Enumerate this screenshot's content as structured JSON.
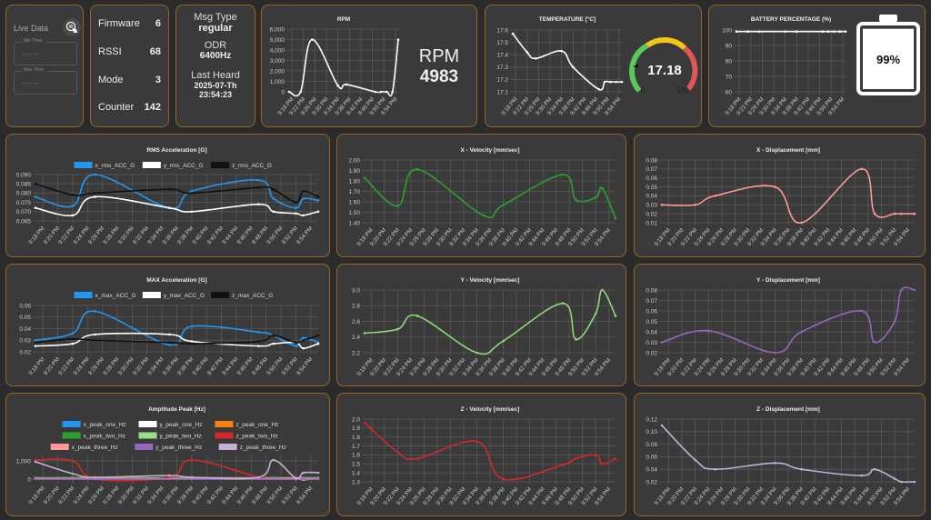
{
  "live": {
    "label": "Live Data",
    "min_time_label": "Min Time:",
    "min_time_value": "--:-- --",
    "max_time_label": "Max Time:",
    "max_time_value": "--:-- --"
  },
  "device": {
    "rows": [
      {
        "key": "Firmware",
        "value": "6"
      },
      {
        "key": "RSSI",
        "value": "68"
      },
      {
        "key": "Mode",
        "value": "3"
      },
      {
        "key": "Counter",
        "value": "142"
      }
    ]
  },
  "message": {
    "msg_type_label": "Msg Type",
    "msg_type": "regular",
    "odr_label": "ODR",
    "odr": "6400Hz",
    "last_heard_label": "Last Heard",
    "last_heard_date": "2025-07-Th",
    "last_heard_time": "23:54:23"
  },
  "rpm": {
    "label": "RPM",
    "value": "4983"
  },
  "gauge": {
    "value": "17.18",
    "min": "0",
    "max": "100",
    "colors": [
      "#5ac85a",
      "#f5c518",
      "#e05555"
    ]
  },
  "battery": {
    "value": "99%",
    "level": 99
  },
  "chart_data": [
    {
      "id": "rpm",
      "type": "line",
      "title": "RPM",
      "xlim": [
        "9:17 PM",
        "9:55 PM"
      ],
      "ylim": [
        0,
        6000
      ],
      "yticks": [
        "0",
        "1,000",
        "2,000",
        "3,000",
        "4,000",
        "5,000",
        "6,000"
      ],
      "xticks": [
        "9:18 PM",
        "9:22 PM",
        "9:26 PM",
        "9:30 PM",
        "9:34 PM",
        "9:38 PM",
        "9:42 PM",
        "9:46 PM",
        "9:50 PM",
        "9:54 PM"
      ],
      "x": [
        "9:17 PM",
        "9:21 PM",
        "9:25 PM",
        "9:34 PM",
        "9:37 PM",
        "9:47 PM",
        "9:49 PM",
        "9:51 PM",
        "9:53 PM",
        "9:55 PM"
      ],
      "series": [
        {
          "color": "#ffffff",
          "values": [
            0,
            0,
            5000,
            600,
            700,
            0,
            0,
            0,
            0,
            4983
          ]
        }
      ]
    },
    {
      "id": "temp",
      "type": "line",
      "title": "TEMPERATURE [°C]",
      "xlim": [
        "9:17 PM",
        "9:55 PM"
      ],
      "ylim": [
        17.1,
        17.6
      ],
      "yticks": [
        "17.1",
        "17.2",
        "17.3",
        "17.4",
        "17.5",
        "17.6"
      ],
      "xticks": [
        "9:18 PM",
        "9:22 PM",
        "9:26 PM",
        "9:30 PM",
        "9:34 PM",
        "9:38 PM",
        "9:42 PM",
        "9:46 PM",
        "9:50 PM",
        "9:54 PM"
      ],
      "x": [
        "9:17 PM",
        "9:22 PM",
        "9:25 PM",
        "9:34 PM",
        "9:38 PM",
        "9:47 PM",
        "9:49 PM",
        "9:51 PM",
        "9:53 PM",
        "9:55 PM"
      ],
      "series": [
        {
          "color": "#ffffff",
          "values": [
            17.57,
            17.42,
            17.37,
            17.43,
            17.3,
            17.12,
            17.18,
            17.18,
            17.18,
            17.18
          ]
        }
      ]
    },
    {
      "id": "battery",
      "type": "line",
      "title": "BATTERY PERCENTAGE (%)",
      "xlim": [
        "9:17 PM",
        "9:55 PM"
      ],
      "ylim": [
        60,
        100
      ],
      "yticks": [
        "60",
        "70",
        "80",
        "90",
        "100"
      ],
      "xticks": [
        "9:18 PM",
        "9:22 PM",
        "9:26 PM",
        "9:30 PM",
        "9:34 PM",
        "9:38 PM",
        "9:42 PM",
        "9:46 PM",
        "9:50 PM",
        "9:54 PM"
      ],
      "x": [
        "9:17 PM",
        "9:21 PM",
        "9:25 PM",
        "9:34 PM",
        "9:38 PM",
        "9:47 PM",
        "9:49 PM",
        "9:51 PM",
        "9:53 PM",
        "9:55 PM"
      ],
      "series": [
        {
          "color": "#ffffff",
          "values": [
            99,
            99,
            99,
            99,
            99,
            99,
            99,
            99,
            99,
            99
          ]
        }
      ]
    },
    {
      "id": "rms",
      "type": "line",
      "title": "RMS Acceleration [G]",
      "xlim": [
        "9:17 PM",
        "9:55 PM"
      ],
      "ylim": [
        0.065,
        0.09
      ],
      "yticks": [
        "0.065",
        "0.070",
        "0.075",
        "0.080",
        "0.085",
        "0.090"
      ],
      "xticks": [
        "9:18 PM",
        "9:20 PM",
        "9:22 PM",
        "9:24 PM",
        "9:26 PM",
        "9:28 PM",
        "9:30 PM",
        "9:32 PM",
        "9:34 PM",
        "9:36 PM",
        "9:38 PM",
        "9:40 PM",
        "9:42 PM",
        "9:44 PM",
        "9:46 PM",
        "9:48 PM",
        "9:50 PM",
        "9:52 PM",
        "9:54 PM"
      ],
      "x": [
        "9:17 PM",
        "9:22 PM",
        "9:25 PM",
        "9:35 PM",
        "9:38 PM",
        "9:47 PM",
        "9:49 PM",
        "9:52 PM",
        "9:53 PM",
        "9:55 PM"
      ],
      "series": [
        {
          "name": "x_rms_ACC_G",
          "color": "#2196f3",
          "values": [
            0.078,
            0.073,
            0.09,
            0.072,
            0.081,
            0.087,
            0.077,
            0.072,
            0.077,
            0.076
          ]
        },
        {
          "name": "y_rms_ACC_G",
          "color": "#ffffff",
          "values": [
            0.072,
            0.068,
            0.078,
            0.072,
            0.07,
            0.074,
            0.07,
            0.069,
            0.068,
            0.07
          ]
        },
        {
          "name": "z_rms_ACC_G",
          "color": "#111111",
          "values": [
            0.085,
            0.079,
            0.08,
            0.082,
            0.08,
            0.083,
            0.082,
            0.075,
            0.081,
            0.078
          ]
        }
      ]
    },
    {
      "id": "xvel",
      "type": "line",
      "title": "X - Velocity [mm/sec]",
      "xlim": [
        "9:17 PM",
        "9:55 PM"
      ],
      "ylim": [
        1.4,
        2.0
      ],
      "yticks": [
        "1.40",
        "1.50",
        "1.60",
        "1.70",
        "1.80",
        "1.90",
        "2.00"
      ],
      "xticks": [
        "9:18 PM",
        "9:20 PM",
        "9:22 PM",
        "9:24 PM",
        "9:26 PM",
        "9:28 PM",
        "9:30 PM",
        "9:32 PM",
        "9:34 PM",
        "9:36 PM",
        "9:38 PM",
        "9:40 PM",
        "9:42 PM",
        "9:44 PM",
        "9:46 PM",
        "9:48 PM",
        "9:50 PM",
        "9:52 PM",
        "9:54 PM"
      ],
      "x": [
        "9:17 PM",
        "9:22 PM",
        "9:25 PM",
        "9:35 PM",
        "9:38 PM",
        "9:47 PM",
        "9:49 PM",
        "9:52 PM",
        "9:53 PM",
        "9:55 PM"
      ],
      "series": [
        {
          "color": "#2ca02c",
          "values": [
            1.83,
            1.56,
            1.91,
            1.47,
            1.57,
            1.86,
            1.62,
            1.64,
            1.73,
            1.44
          ]
        }
      ]
    },
    {
      "id": "xdisp",
      "type": "line",
      "title": "X - Displacement [mm]",
      "xlim": [
        "9:17 PM",
        "9:55 PM"
      ],
      "ylim": [
        0.01,
        0.08
      ],
      "yticks": [
        "0.01",
        "0.02",
        "0.03",
        "0.04",
        "0.05",
        "0.06",
        "0.07",
        "0.08"
      ],
      "xticks": [
        "9:18 PM",
        "9:20 PM",
        "9:22 PM",
        "9:24 PM",
        "9:26 PM",
        "9:28 PM",
        "9:30 PM",
        "9:32 PM",
        "9:34 PM",
        "9:36 PM",
        "9:38 PM",
        "9:40 PM",
        "9:42 PM",
        "9:44 PM",
        "9:46 PM",
        "9:48 PM",
        "9:50 PM",
        "9:52 PM",
        "9:54 PM"
      ],
      "x": [
        "9:17 PM",
        "9:22 PM",
        "9:25 PM",
        "9:34 PM",
        "9:38 PM",
        "9:47 PM",
        "9:49 PM",
        "9:52 PM",
        "9:53 PM",
        "9:55 PM"
      ],
      "series": [
        {
          "color": "#ff9896",
          "values": [
            0.03,
            0.03,
            0.04,
            0.05,
            0.01,
            0.07,
            0.02,
            0.02,
            0.02,
            0.02
          ]
        }
      ]
    },
    {
      "id": "max",
      "type": "line",
      "title": "MAX Acceleration [G]",
      "xlim": [
        "9:17 PM",
        "9:55 PM"
      ],
      "ylim": [
        0.02,
        0.06
      ],
      "yticks": [
        "0.02",
        "0.03",
        "0.04",
        "0.05",
        "0.06"
      ],
      "xticks": [
        "9:18 PM",
        "9:20 PM",
        "9:22 PM",
        "9:24 PM",
        "9:26 PM",
        "9:28 PM",
        "9:30 PM",
        "9:32 PM",
        "9:34 PM",
        "9:36 PM",
        "9:38 PM",
        "9:40 PM",
        "9:42 PM",
        "9:44 PM",
        "9:46 PM",
        "9:48 PM",
        "9:50 PM",
        "9:52 PM",
        "9:54 PM"
      ],
      "x": [
        "9:17 PM",
        "9:22 PM",
        "9:25 PM",
        "9:35 PM",
        "9:38 PM",
        "9:47 PM",
        "9:49 PM",
        "9:52 PM",
        "9:53 PM",
        "9:55 PM"
      ],
      "series": [
        {
          "name": "x_max_ACC_G",
          "color": "#2196f3",
          "values": [
            0.03,
            0.036,
            0.055,
            0.026,
            0.042,
            0.037,
            0.034,
            0.025,
            0.032,
            0.028
          ]
        },
        {
          "name": "y_max_ACC_G",
          "color": "#ffffff",
          "values": [
            0.025,
            0.027,
            0.035,
            0.035,
            0.029,
            0.025,
            0.027,
            0.028,
            0.023,
            0.027
          ]
        },
        {
          "name": "z_max_ACC_G",
          "color": "#111111",
          "values": [
            0.028,
            0.031,
            0.03,
            0.028,
            0.027,
            0.029,
            0.034,
            0.028,
            0.03,
            0.034
          ]
        }
      ]
    },
    {
      "id": "yvel",
      "type": "line",
      "title": "Y - Velocity [mm/sec]",
      "xlim": [
        "9:17 PM",
        "9:55 PM"
      ],
      "ylim": [
        2.2,
        3.0
      ],
      "yticks": [
        "2.2",
        "2.4",
        "2.6",
        "2.8",
        "3.0"
      ],
      "xticks": [
        "9:18 PM",
        "9:20 PM",
        "9:22 PM",
        "9:24 PM",
        "9:26 PM",
        "9:28 PM",
        "9:30 PM",
        "9:32 PM",
        "9:34 PM",
        "9:36 PM",
        "9:38 PM",
        "9:40 PM",
        "9:42 PM",
        "9:44 PM",
        "9:46 PM",
        "9:48 PM",
        "9:50 PM",
        "9:52 PM",
        "9:54 PM"
      ],
      "x": [
        "9:17 PM",
        "9:22 PM",
        "9:25 PM",
        "9:34 PM",
        "9:38 PM",
        "9:47 PM",
        "9:49 PM",
        "9:52 PM",
        "9:53 PM",
        "9:55 PM"
      ],
      "series": [
        {
          "color": "#8fd97a",
          "values": [
            2.45,
            2.5,
            2.67,
            2.2,
            2.35,
            2.83,
            2.37,
            2.7,
            3.0,
            2.67
          ]
        }
      ]
    },
    {
      "id": "ydisp",
      "type": "line",
      "title": "Y - Displacement [mm]",
      "xlim": [
        "9:17 PM",
        "9:55 PM"
      ],
      "ylim": [
        0.02,
        0.08
      ],
      "yticks": [
        "0.02",
        "0.03",
        "0.04",
        "0.05",
        "0.06",
        "0.07",
        "0.08"
      ],
      "xticks": [
        "9:18 PM",
        "9:20 PM",
        "9:22 PM",
        "9:24 PM",
        "9:26 PM",
        "9:28 PM",
        "9:30 PM",
        "9:32 PM",
        "9:34 PM",
        "9:36 PM",
        "9:38 PM",
        "9:40 PM",
        "9:42 PM",
        "9:44 PM",
        "9:46 PM",
        "9:48 PM",
        "9:50 PM",
        "9:52 PM",
        "9:54 PM"
      ],
      "x": [
        "9:17 PM",
        "9:24 PM",
        "9:34 PM",
        "9:38 PM",
        "9:47 PM",
        "9:49 PM",
        "9:52 PM",
        "9:53 PM",
        "9:55 PM"
      ],
      "series": [
        {
          "color": "#9467bd",
          "values": [
            0.03,
            0.041,
            0.02,
            0.04,
            0.06,
            0.03,
            0.05,
            0.08,
            0.08
          ]
        }
      ]
    },
    {
      "id": "amp",
      "type": "line",
      "title": "Amplitude Peak [Hz]",
      "xlim": [
        "9:17 PM",
        "9:55 PM"
      ],
      "ylim": [
        -100,
        1300
      ],
      "yticks": [
        "0",
        "1,000"
      ],
      "xticks": [
        "9:18 PM",
        "9:20 PM",
        "9:22 PM",
        "9:24 PM",
        "9:26 PM",
        "9:28 PM",
        "9:30 PM",
        "9:32 PM",
        "9:34 PM",
        "9:36 PM",
        "9:38 PM",
        "9:40 PM",
        "9:42 PM",
        "9:44 PM",
        "9:46 PM",
        "9:48 PM",
        "9:50 PM",
        "9:52 PM",
        "9:54 PM"
      ],
      "x": [
        "9:17 PM",
        "9:22 PM",
        "9:25 PM",
        "9:35 PM",
        "9:38 PM",
        "9:47 PM",
        "9:49 PM",
        "9:52 PM",
        "9:53 PM",
        "9:55 PM"
      ],
      "series": [
        {
          "name": "x_peak_one_Hz",
          "color": "#2196f3",
          "values": [
            80,
            80,
            80,
            80,
            80,
            80,
            80,
            80,
            80,
            80
          ]
        },
        {
          "name": "y_peak_one_Hz",
          "color": "#ffffff",
          "values": [
            30,
            30,
            30,
            30,
            30,
            30,
            30,
            30,
            -30,
            30
          ]
        },
        {
          "name": "z_peak_one_Hz",
          "color": "#ff7f0e",
          "values": [
            60,
            60,
            60,
            60,
            60,
            60,
            60,
            60,
            60,
            60
          ]
        },
        {
          "name": "x_peak_two_Hz",
          "color": "#2ca02c",
          "values": [
            40,
            40,
            40,
            40,
            40,
            20,
            40,
            0,
            40,
            40
          ]
        },
        {
          "name": "y_peak_two_Hz",
          "color": "#98df8a",
          "values": [
            20,
            20,
            20,
            20,
            20,
            20,
            20,
            20,
            20,
            20
          ]
        },
        {
          "name": "z_peak_two_Hz",
          "color": "#d62728",
          "values": [
            1050,
            1000,
            0,
            100,
            1050,
            100,
            0,
            0,
            0,
            0
          ]
        },
        {
          "name": "x_peak_three_Hz",
          "color": "#ff9896",
          "values": [
            10,
            10,
            10,
            10,
            10,
            10,
            10,
            10,
            10,
            10
          ]
        },
        {
          "name": "y_peak_three_Hz",
          "color": "#9467bd",
          "values": [
            0,
            0,
            0,
            0,
            0,
            0,
            0,
            0,
            0,
            0
          ]
        },
        {
          "name": "z_peak_three_Hz",
          "color": "#c5b0d5",
          "values": [
            950,
            300,
            100,
            200,
            100,
            100,
            1050,
            50,
            350,
            350
          ]
        }
      ]
    },
    {
      "id": "zvel",
      "type": "line",
      "title": "Z - Velocity [mm/sec]",
      "xlim": [
        "9:17 PM",
        "9:55 PM"
      ],
      "ylim": [
        1.3,
        2.0
      ],
      "yticks": [
        "1.3",
        "1.4",
        "1.5",
        "1.6",
        "1.7",
        "1.8",
        "1.9",
        "2.0"
      ],
      "xticks": [
        "9:18 PM",
        "9:20 PM",
        "9:22 PM",
        "9:24 PM",
        "9:26 PM",
        "9:28 PM",
        "9:30 PM",
        "9:32 PM",
        "9:34 PM",
        "9:36 PM",
        "9:38 PM",
        "9:40 PM",
        "9:42 PM",
        "9:44 PM",
        "9:46 PM",
        "9:48 PM",
        "9:50 PM",
        "9:52 PM",
        "9:54 PM"
      ],
      "x": [
        "9:17 PM",
        "9:22 PM",
        "9:25 PM",
        "9:34 PM",
        "9:38 PM",
        "9:47 PM",
        "9:49 PM",
        "9:52 PM",
        "9:53 PM",
        "9:55 PM"
      ],
      "series": [
        {
          "color": "#d62728",
          "values": [
            1.96,
            1.63,
            1.56,
            1.75,
            1.33,
            1.49,
            1.56,
            1.6,
            1.5,
            1.56
          ]
        }
      ]
    },
    {
      "id": "zdisp",
      "type": "line",
      "title": "Z - Displacement [mm]",
      "xlim": [
        "9:17 PM",
        "9:55 PM"
      ],
      "ylim": [
        0.02,
        0.12
      ],
      "yticks": [
        "0.02",
        "0.04",
        "0.06",
        "0.08",
        "0.10",
        "0.12"
      ],
      "xticks": [
        "9:18 PM",
        "9:20 PM",
        "9:22 PM",
        "9:24 PM",
        "9:26 PM",
        "9:28 PM",
        "9:30 PM",
        "9:32 PM",
        "9:34 PM",
        "9:36 PM",
        "9:38 PM",
        "9:40 PM",
        "9:42 PM",
        "9:44 PM",
        "9:46 PM",
        "9:48 PM",
        "9:50 PM",
        "9:52 PM",
        "9:54 PM"
      ],
      "x": [
        "9:17 PM",
        "9:22 PM",
        "9:25 PM",
        "9:34 PM",
        "9:38 PM",
        "9:47 PM",
        "9:49 PM",
        "9:52 PM",
        "9:53 PM",
        "9:55 PM"
      ],
      "series": [
        {
          "color": "#c5b0d5",
          "values": [
            0.11,
            0.055,
            0.04,
            0.05,
            0.04,
            0.03,
            0.04,
            0.025,
            0.02,
            0.02
          ]
        }
      ]
    }
  ]
}
